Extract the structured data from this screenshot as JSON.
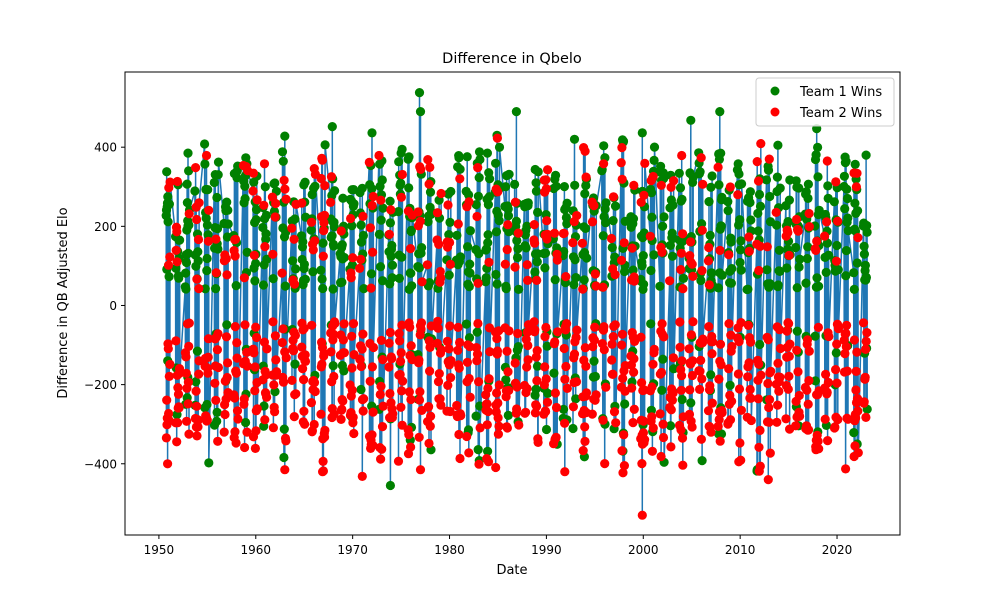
{
  "chart_data": {
    "type": "scatter",
    "title": "Difference in Qbelo",
    "xlabel": "Date",
    "ylabel": "Difference in QB Adjusted Elo",
    "xlim": [
      1946.5,
      2026.5
    ],
    "ylim": [
      -580,
      590
    ],
    "xticks": [
      1950,
      1960,
      1970,
      1980,
      1990,
      2000,
      2010,
      2020
    ],
    "xtick_labels": [
      "1950",
      "1960",
      "1970",
      "1980",
      "1990",
      "2000",
      "2010",
      "2020"
    ],
    "yticks": [
      -400,
      -200,
      0,
      200,
      400
    ],
    "ytick_labels": [
      "−400",
      "−200",
      "0",
      "200",
      "400"
    ],
    "grid": false,
    "legend_position": "upper right",
    "line_series": {
      "description_color": "#1f77b4",
      "x_range": [
        1950.75,
        2023.1
      ],
      "amplitude_range": [
        250,
        400
      ]
    },
    "series": [
      {
        "name": "Team 1 Wins",
        "color": "#008000",
        "extremes": [
          {
            "x": 1950.8,
            "y": 338
          },
          {
            "x": 1953.0,
            "y": 385
          },
          {
            "x": 1963.0,
            "y": 428
          },
          {
            "x": 1967.9,
            "y": 452
          },
          {
            "x": 1972.0,
            "y": 436
          },
          {
            "x": 1976.9,
            "y": 538
          },
          {
            "x": 1977.0,
            "y": 490
          },
          {
            "x": 1984.9,
            "y": 430
          },
          {
            "x": 1986.9,
            "y": 490
          },
          {
            "x": 1992.9,
            "y": 420
          },
          {
            "x": 1999.9,
            "y": 436
          },
          {
            "x": 2004.9,
            "y": 468
          },
          {
            "x": 2007.9,
            "y": 490
          },
          {
            "x": 2013.9,
            "y": 405
          },
          {
            "x": 2017.9,
            "y": 447
          },
          {
            "x": 2023.0,
            "y": 380
          },
          {
            "x": 1973.9,
            "y": -455
          },
          {
            "x": 1997.9,
            "y": -368
          }
        ]
      },
      {
        "name": "Team 2 Wins",
        "color": "#ff0000",
        "extremes": [
          {
            "x": 1950.9,
            "y": -400
          },
          {
            "x": 1963.0,
            "y": -415
          },
          {
            "x": 1966.9,
            "y": -420
          },
          {
            "x": 1971.0,
            "y": -432
          },
          {
            "x": 1977.0,
            "y": -415
          },
          {
            "x": 1991.9,
            "y": -420
          },
          {
            "x": 1999.9,
            "y": -530
          },
          {
            "x": 2012.9,
            "y": -440
          },
          {
            "x": 2022.2,
            "y": -372
          },
          {
            "x": 1960.9,
            "y": 358
          },
          {
            "x": 1995.9,
            "y": 358
          },
          {
            "x": 2019.0,
            "y": 365
          }
        ]
      }
    ]
  }
}
